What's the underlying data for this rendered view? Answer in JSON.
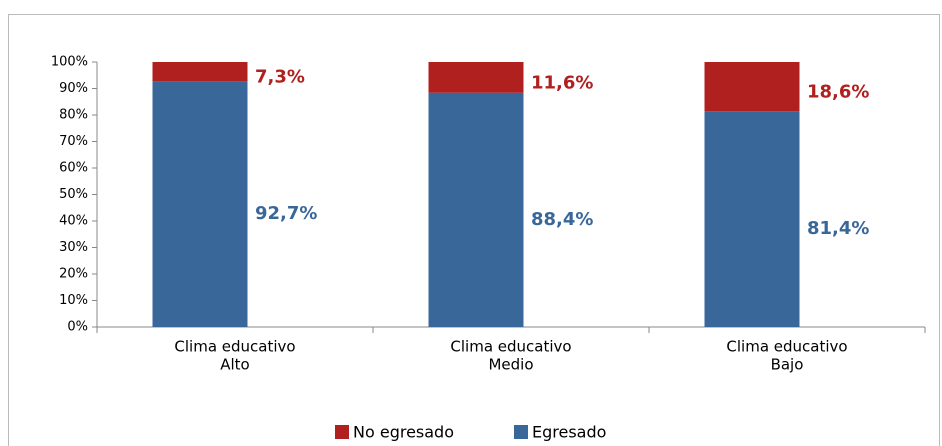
{
  "chart_data": {
    "type": "stacked_bar",
    "categories": [
      [
        "Clima educativo",
        "Alto"
      ],
      [
        "Clima educativo",
        "Medio"
      ],
      [
        "Clima educativo",
        "Bajo"
      ]
    ],
    "series": [
      {
        "name": "No egresado",
        "color": "#b0201e",
        "values": [
          7.3,
          11.6,
          18.6
        ],
        "value_labels": [
          "7,3%",
          "11,6%",
          "18,6%"
        ]
      },
      {
        "name": "Egresado",
        "color": "#3a6799",
        "values": [
          92.7,
          88.4,
          81.4
        ],
        "value_labels": [
          "92,7%",
          "88,4%",
          "81,4%"
        ]
      }
    ],
    "ylim": [
      0,
      100
    ],
    "yticks": [
      {
        "value": 0,
        "label": "0%"
      },
      {
        "value": 10,
        "label": "10%"
      },
      {
        "value": 20,
        "label": "20%"
      },
      {
        "value": 30,
        "label": "30%"
      },
      {
        "value": 40,
        "label": "40%"
      },
      {
        "value": 50,
        "label": "50%"
      },
      {
        "value": 60,
        "label": "60%"
      },
      {
        "value": 70,
        "label": "70%"
      },
      {
        "value": 80,
        "label": "80%"
      },
      {
        "value": 90,
        "label": "90%"
      },
      {
        "value": 100,
        "label": "100%"
      }
    ],
    "legend": "bottom"
  }
}
